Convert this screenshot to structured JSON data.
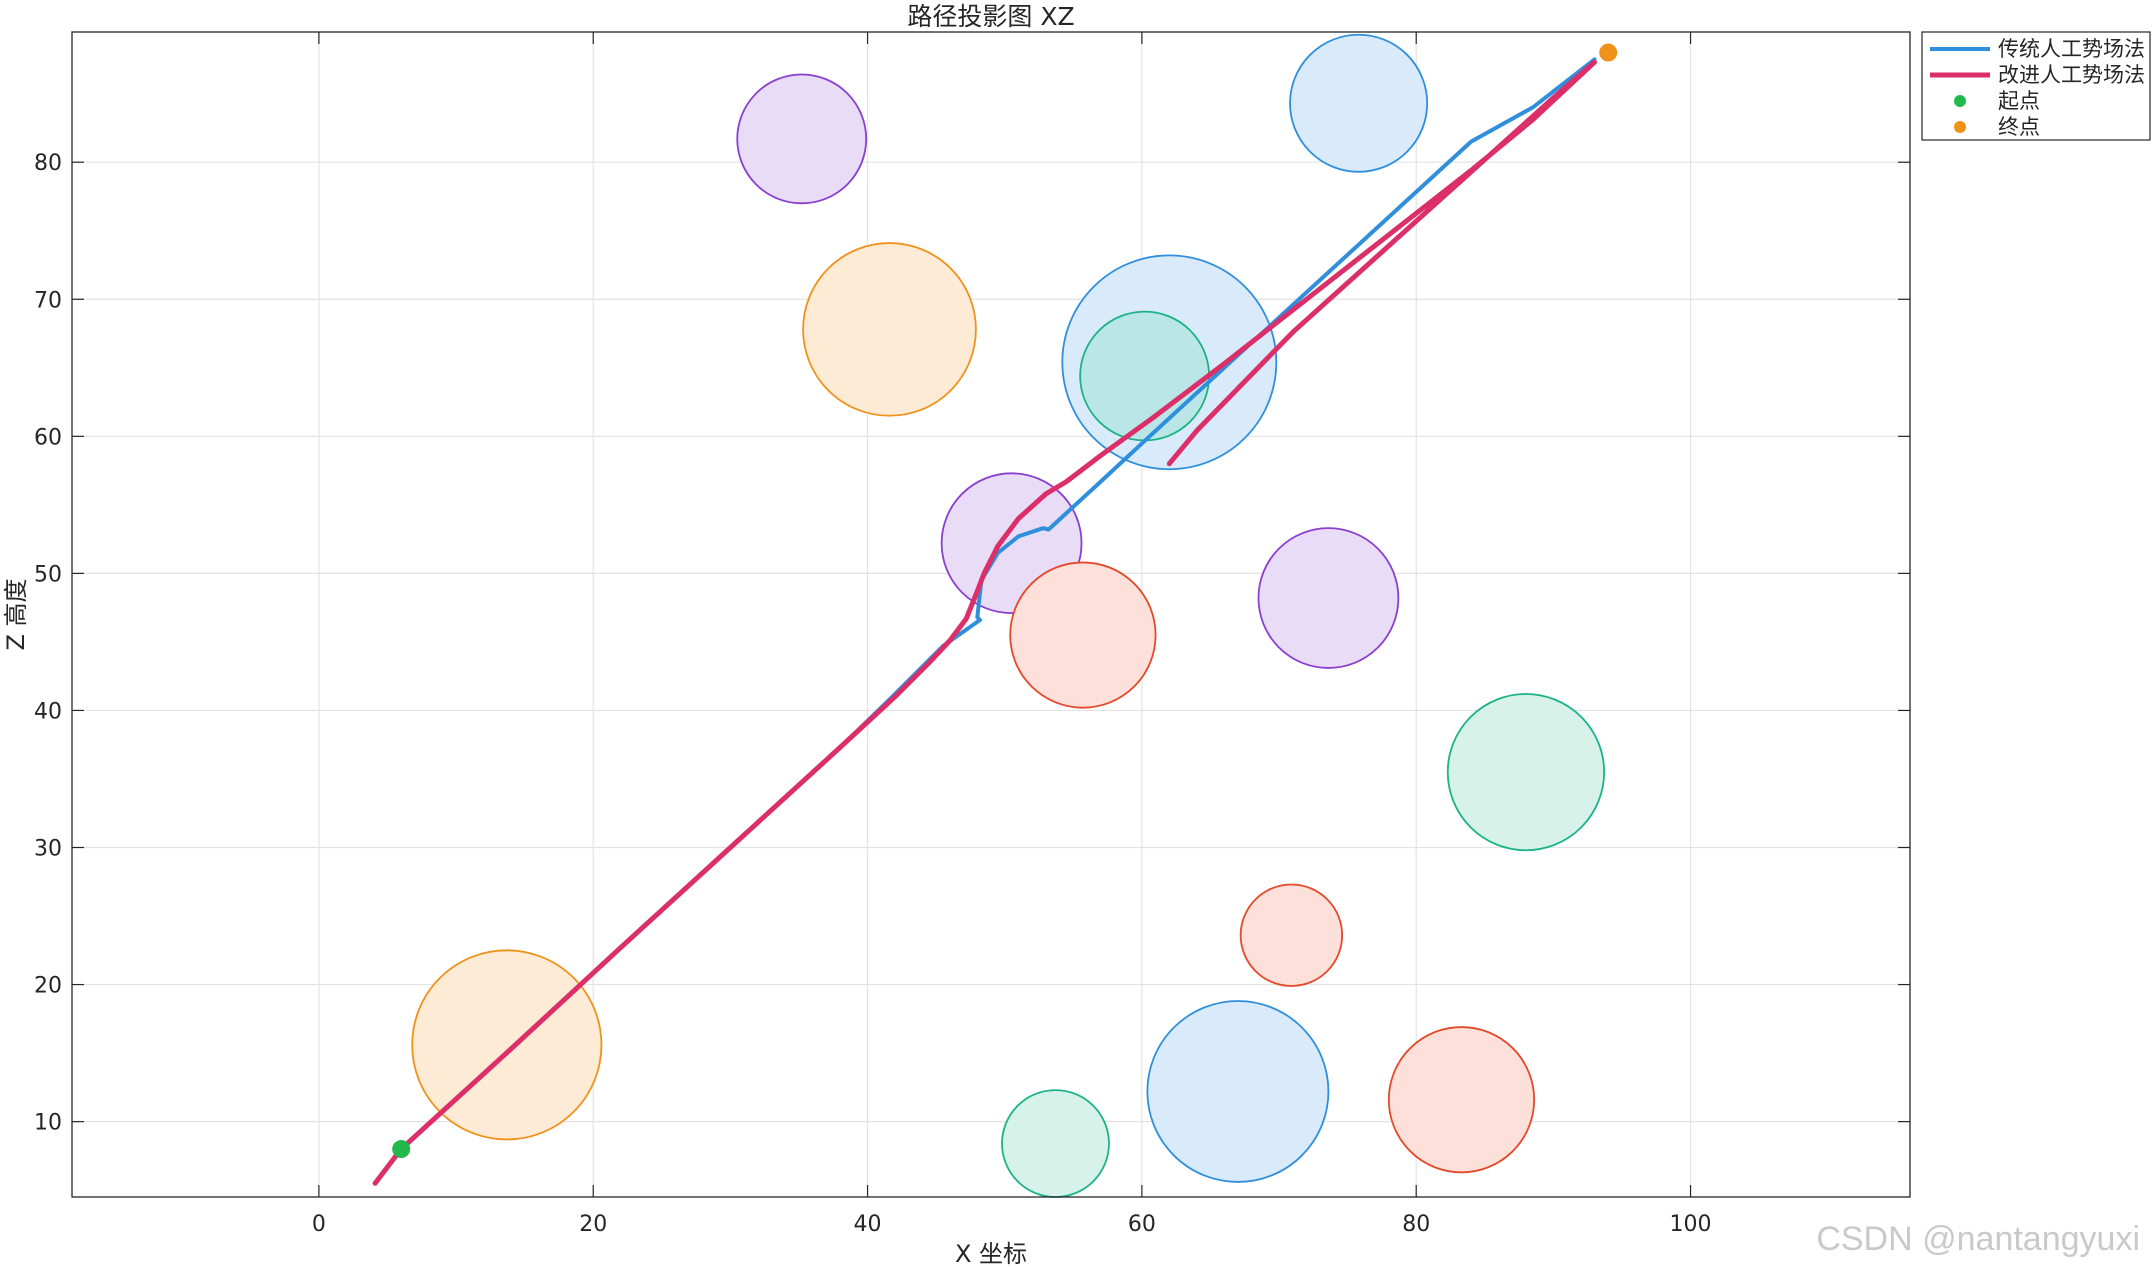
{
  "chart_data": {
    "type": "line",
    "title": "路径投影图 XZ",
    "xlabel": "X 坐标",
    "ylabel": "Z 高度",
    "xlim": [
      -18,
      116
    ],
    "ylim": [
      4.5,
      89.5
    ],
    "xticks": [
      0,
      20,
      40,
      60,
      80,
      100
    ],
    "yticks": [
      10,
      20,
      30,
      40,
      50,
      60,
      70,
      80
    ],
    "grid": true,
    "legend_position": "outside-top-right",
    "obstacles": [
      {
        "cx": 35.2,
        "cz": 81.7,
        "r": 4.7,
        "stroke": "#8a3fd1",
        "fill": "#e9dcf7"
      },
      {
        "cx": 41.6,
        "cz": 67.8,
        "r": 6.3,
        "stroke": "#f0921a",
        "fill": "#fdebd6"
      },
      {
        "cx": 62.0,
        "cz": 65.4,
        "r": 7.8,
        "stroke": "#2f8fdc",
        "fill": "#d9eafa"
      },
      {
        "cx": 60.2,
        "cz": 64.4,
        "r": 4.7,
        "stroke": "#1cb386",
        "fill": "rgba(160,225,215,0.55)"
      },
      {
        "cx": 75.8,
        "cz": 84.3,
        "r": 5.0,
        "stroke": "#2f8fdc",
        "fill": "#d9eafa"
      },
      {
        "cx": 50.5,
        "cz": 52.2,
        "r": 5.1,
        "stroke": "#8a3fd1",
        "fill": "#e9dcf7"
      },
      {
        "cx": 55.7,
        "cz": 45.5,
        "r": 5.3,
        "stroke": "#e3492a",
        "fill": "#fde0d9"
      },
      {
        "cx": 73.6,
        "cz": 48.2,
        "r": 5.1,
        "stroke": "#8a3fd1",
        "fill": "#e9dcf7"
      },
      {
        "cx": 88.0,
        "cz": 35.5,
        "r": 5.7,
        "stroke": "#1cb386",
        "fill": "#d7f3e9"
      },
      {
        "cx": 70.9,
        "cz": 23.6,
        "r": 3.7,
        "stroke": "#e3492a",
        "fill": "#fde0d9"
      },
      {
        "cx": 67.0,
        "cz": 12.2,
        "r": 6.6,
        "stroke": "#2f8fdc",
        "fill": "#d9eafa"
      },
      {
        "cx": 83.3,
        "cz": 11.6,
        "r": 5.3,
        "stroke": "#e3492a",
        "fill": "#fde0d9"
      },
      {
        "cx": 13.7,
        "cz": 15.6,
        "r": 6.9,
        "stroke": "#f0921a",
        "fill": "#fdebd6"
      },
      {
        "cx": 53.7,
        "cz": 8.4,
        "r": 3.9,
        "stroke": "#1cb386",
        "fill": "#d7f3e9"
      }
    ],
    "series": [
      {
        "name": "传统人工势场法",
        "color": "#2f8fdc",
        "x": [
          6.0,
          14.0,
          22.0,
          30.0,
          38.0,
          41.5,
          43.5,
          45.5,
          48.2,
          48.0,
          48.3,
          49.5,
          51.0,
          52.8,
          53.2,
          57.0,
          61.0,
          66.0,
          72.0,
          78.0,
          84.0,
          88.5,
          93.0
        ],
        "y": [
          8.0,
          15.3,
          22.7,
          30.0,
          37.3,
          40.7,
          42.7,
          44.7,
          46.6,
          46.8,
          49.5,
          51.5,
          52.7,
          53.3,
          53.2,
          56.7,
          60.4,
          65.0,
          70.5,
          76.0,
          81.5,
          84.0,
          87.5
        ]
      },
      {
        "name": "改进人工势场法",
        "color": "#dc2f6a",
        "x": [
          4.1,
          6.0,
          14.0,
          22.0,
          30.0,
          38.0,
          42.0,
          44.5,
          46.0,
          47.2,
          48.0,
          48.5,
          49.5,
          51.0,
          53.0,
          54.5,
          57.0,
          61.0,
          66.0,
          72.0,
          78.0,
          84.0,
          88.5,
          93.0,
          90.0,
          85.0,
          78.0,
          71.0,
          64.0,
          62.0
        ],
        "y": [
          5.5,
          8.0,
          15.3,
          22.7,
          30.0,
          37.3,
          41.0,
          43.5,
          45.1,
          46.7,
          48.7,
          50.0,
          52.0,
          54.0,
          55.8,
          56.7,
          58.6,
          61.5,
          65.3,
          70.0,
          74.7,
          79.4,
          83.1,
          87.3,
          84.7,
          80.2,
          73.9,
          67.6,
          60.4,
          58.0
        ]
      }
    ],
    "start": {
      "name": "起点",
      "x": 6.0,
      "y": 8.0,
      "color": "#22b84a"
    },
    "goal": {
      "name": "终点",
      "x": 94.0,
      "y": 88.0,
      "color": "#f0921a"
    }
  },
  "watermark": "CSDN @nantangyuxi"
}
